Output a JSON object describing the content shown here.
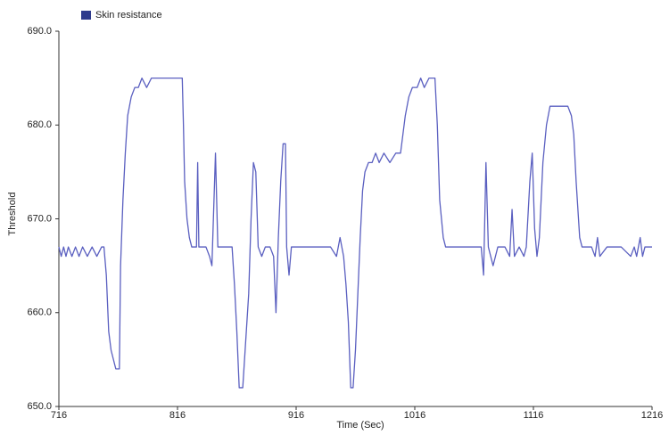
{
  "chart_data": {
    "type": "line",
    "x_label": "Time (Sec)",
    "y_label": "Threshold",
    "x": [
      716,
      718,
      720,
      722,
      724,
      727,
      730,
      733,
      736,
      740,
      744,
      748,
      752,
      754,
      756,
      758,
      760,
      762,
      764,
      767,
      768,
      770,
      772,
      774,
      777,
      780,
      783,
      786,
      790,
      794,
      800,
      806,
      812,
      816,
      820,
      821,
      822,
      824,
      826,
      828,
      832,
      833,
      834,
      840,
      843,
      845,
      848,
      850,
      856,
      862,
      864,
      866,
      868,
      871,
      873,
      876,
      878,
      880,
      882,
      884,
      887,
      890,
      894,
      897,
      899,
      901,
      903,
      905,
      907,
      908,
      910,
      912,
      918,
      925,
      935,
      945,
      950,
      953,
      956,
      958,
      960,
      962,
      964,
      966,
      968,
      970,
      972,
      974,
      977,
      980,
      983,
      986,
      990,
      995,
      1000,
      1004,
      1006,
      1008,
      1011,
      1014,
      1018,
      1021,
      1024,
      1028,
      1033,
      1035,
      1037,
      1040,
      1042,
      1046,
      1055,
      1065,
      1072,
      1074,
      1076,
      1078,
      1082,
      1086,
      1092,
      1096,
      1098,
      1100,
      1104,
      1108,
      1110,
      1113,
      1115,
      1117,
      1119,
      1121,
      1124,
      1127,
      1130,
      1135,
      1140,
      1145,
      1148,
      1150,
      1152,
      1155,
      1157,
      1165,
      1168,
      1170,
      1172,
      1178,
      1190,
      1198,
      1201,
      1203,
      1206,
      1208,
      1210,
      1216
    ],
    "series": [
      {
        "name": "Skin resistance",
        "color": "#5a5fc0",
        "values": [
          667,
          666,
          667,
          666,
          667,
          666,
          667,
          666,
          667,
          666,
          667,
          666,
          667,
          667,
          664,
          658,
          656,
          655,
          654,
          654,
          665,
          672,
          677,
          681,
          683,
          684,
          684,
          685,
          684,
          685,
          685,
          685,
          685,
          685,
          685,
          680,
          674,
          670,
          668,
          667,
          667,
          676,
          667,
          667,
          666,
          665,
          677,
          667,
          667,
          667,
          663,
          658,
          652,
          652,
          656,
          662,
          670,
          676,
          675,
          667,
          666,
          667,
          667,
          666,
          660,
          668,
          674,
          678,
          678,
          667,
          664,
          667,
          667,
          667,
          667,
          667,
          666,
          668,
          666,
          663,
          659,
          652,
          652,
          656,
          662,
          668,
          673,
          675,
          676,
          676,
          677,
          676,
          677,
          676,
          677,
          677,
          679,
          681,
          683,
          684,
          684,
          685,
          684,
          685,
          685,
          680,
          672,
          668,
          667,
          667,
          667,
          667,
          667,
          664,
          676,
          667,
          665,
          667,
          667,
          666,
          671,
          666,
          667,
          666,
          667,
          674,
          677,
          669,
          666,
          668,
          676,
          680,
          682,
          682,
          682,
          682,
          681,
          679,
          674,
          668,
          667,
          667,
          666,
          668,
          666,
          667,
          667,
          666,
          667,
          666,
          668,
          666,
          667,
          667
        ]
      }
    ],
    "xlim": [
      716,
      1216
    ],
    "xticks": [
      716,
      816,
      916,
      1016,
      1116,
      1216
    ],
    "ylim": [
      650,
      690
    ],
    "yticks": [
      {
        "value": 650,
        "label": "650.0"
      },
      {
        "value": 660,
        "label": "660.0"
      },
      {
        "value": 670,
        "label": "670.0"
      },
      {
        "value": 680,
        "label": "680.0"
      },
      {
        "value": 690,
        "label": "690.0"
      }
    ],
    "legend_color": "#2e3a8c",
    "legend_position": "top-left",
    "grid": false
  }
}
